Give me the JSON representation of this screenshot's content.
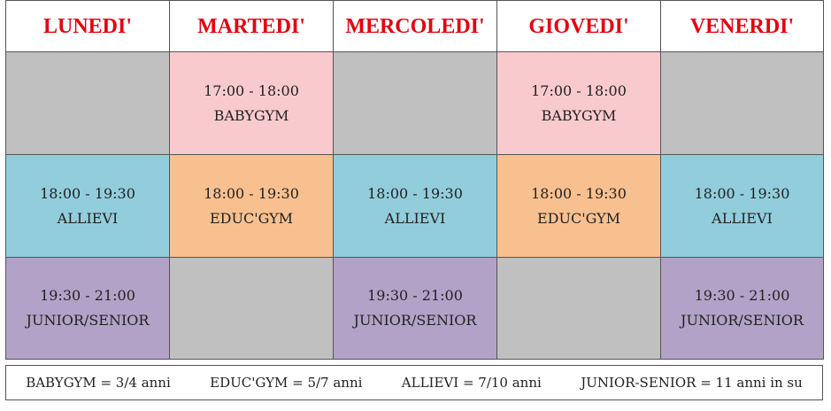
{
  "header": {
    "days": [
      "LUNEDI'",
      "MARTEDI'",
      "MERCOLEDI'",
      "GIOVEDI'",
      "VENERDI'"
    ]
  },
  "table": {
    "rows": [
      [
        null,
        {
          "time": "17:00 - 18:00",
          "label": "BABYGYM"
        },
        null,
        {
          "time": "17:00 - 18:00",
          "label": "BABYGYM"
        },
        null
      ],
      [
        {
          "time": "18:00 - 19:30",
          "label": "ALLIEVI"
        },
        {
          "time": "18:00 - 19:30",
          "label": "EDUC'GYM"
        },
        {
          "time": "18:00 - 19:30",
          "label": "ALLIEVI"
        },
        {
          "time": "18:00 - 19:30",
          "label": "EDUC'GYM"
        },
        {
          "time": "18:00 - 19:30",
          "label": "ALLIEVI"
        }
      ],
      [
        {
          "time": "19:30 - 21:00",
          "label": "JUNIOR/SENIOR"
        },
        null,
        {
          "time": "19:30 - 21:00",
          "label": "JUNIOR/SENIOR"
        },
        null,
        {
          "time": "19:30 - 21:00",
          "label": "JUNIOR/SENIOR"
        }
      ]
    ]
  },
  "legend": {
    "items": [
      "BABYGYM = 3/4 anni",
      "EDUC'GYM = 5/7 anni",
      "ALLIEVI = 7/10 anni",
      "JUNIOR-SENIOR = 11 anni in su"
    ]
  }
}
